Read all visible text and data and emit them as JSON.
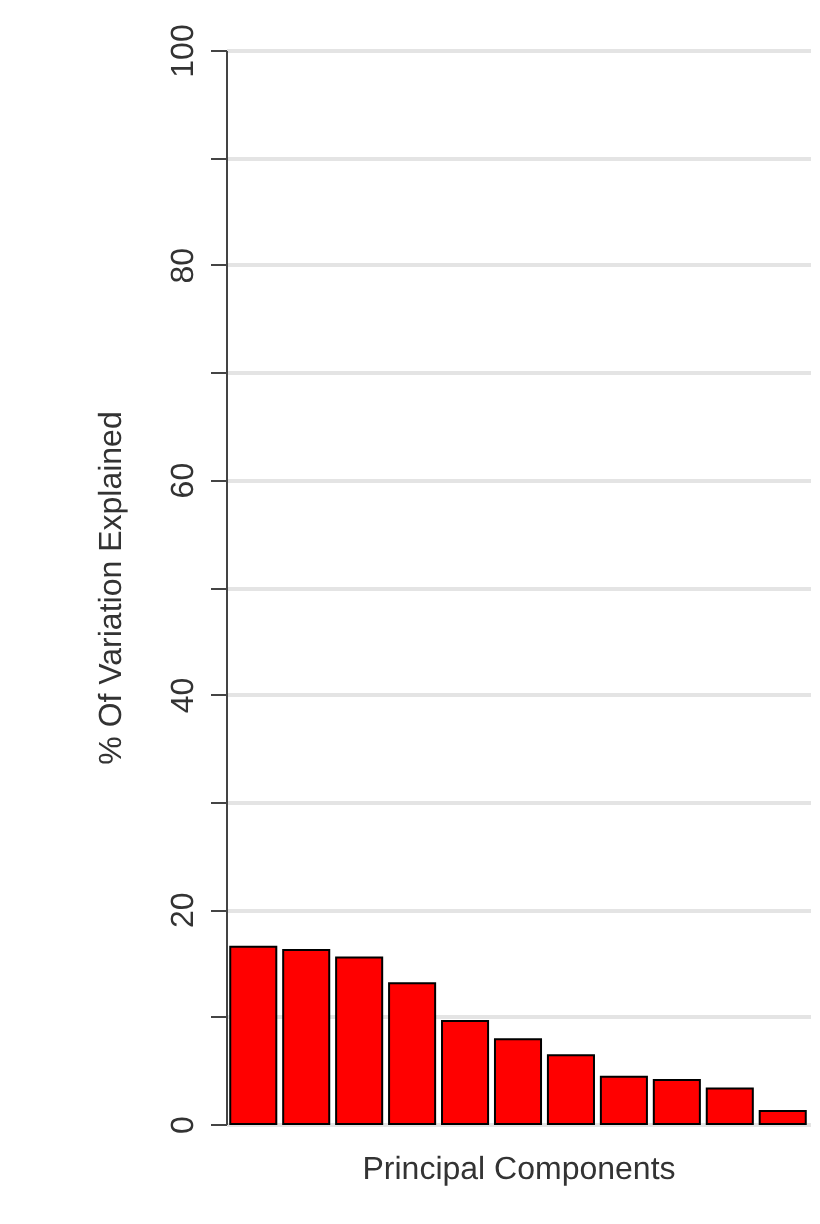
{
  "chart_data": {
    "type": "bar",
    "xlabel": "Principal Components",
    "ylabel": "% Of Variation Explained",
    "categories": [
      null,
      null,
      null,
      null,
      null,
      null,
      null,
      null,
      null,
      null,
      null
    ],
    "values": [
      16.5,
      16.2,
      15.5,
      13.1,
      9.6,
      7.9,
      6.4,
      4.4,
      4.1,
      3.3,
      1.2
    ],
    "color": "#ff0000",
    "ylim": [
      0,
      100
    ],
    "yticks": [
      0,
      {
        "value": 10,
        "label": null
      },
      20,
      {
        "value": 30,
        "label": null
      },
      40,
      {
        "value": 50,
        "label": null
      },
      60,
      {
        "value": 70,
        "label": null
      },
      80,
      {
        "value": 90,
        "label": null
      },
      100
    ],
    "grid": "y"
  }
}
